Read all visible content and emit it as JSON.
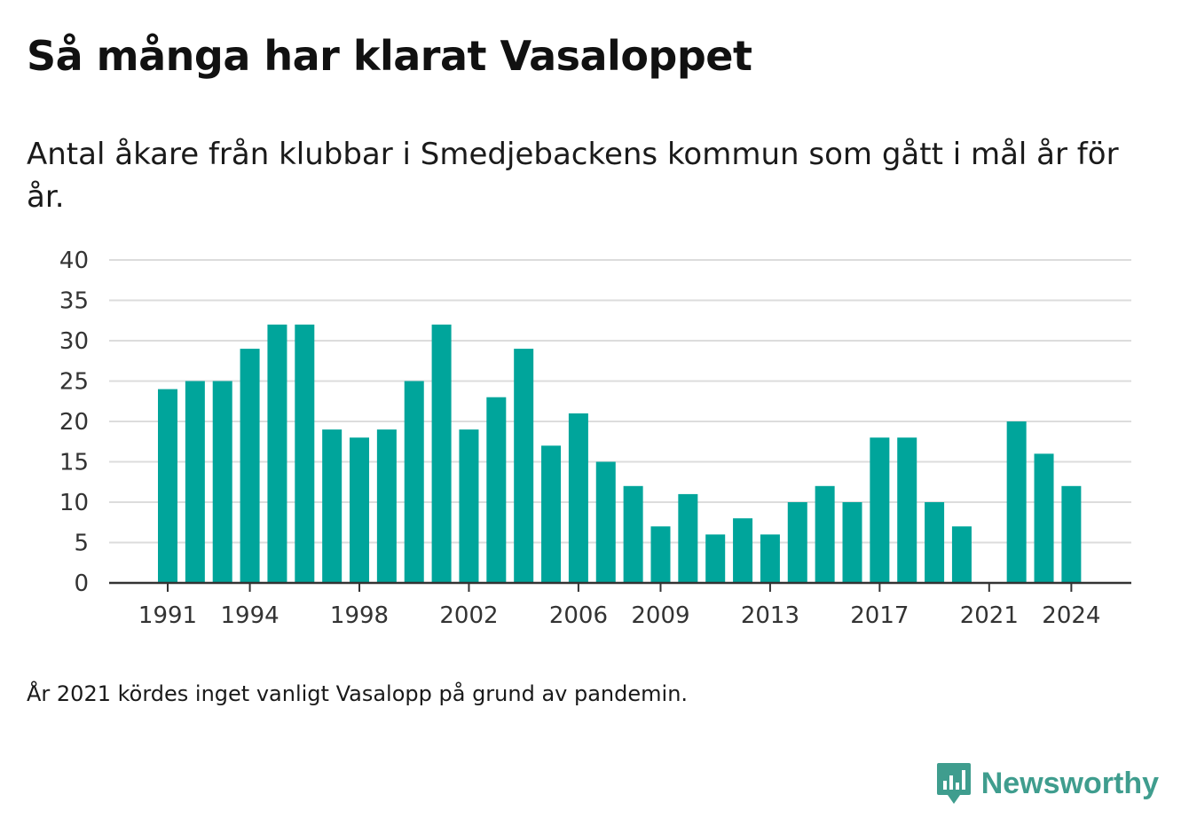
{
  "header": {
    "title": "Så många har klarat Vasaloppet",
    "subtitle": "Antal åkare från klubbar i Smedjebackens kommun som gått i mål år för år."
  },
  "footnote": "År 2021 kördes inget vanligt Vasalopp på grund av pandemin.",
  "brand": {
    "name": "Newsworthy",
    "icon": "newsworthy-logo-icon",
    "color": "#3f9d8e"
  },
  "chart_data": {
    "type": "bar",
    "categories": [
      1991,
      1992,
      1993,
      1994,
      1995,
      1996,
      1997,
      1998,
      1999,
      2000,
      2001,
      2002,
      2003,
      2004,
      2005,
      2006,
      2007,
      2008,
      2009,
      2010,
      2011,
      2012,
      2013,
      2014,
      2015,
      2016,
      2017,
      2018,
      2019,
      2020,
      2021,
      2022,
      2023,
      2024
    ],
    "values": [
      24,
      25,
      25,
      29,
      32,
      32,
      19,
      18,
      19,
      25,
      32,
      19,
      23,
      29,
      17,
      21,
      15,
      12,
      7,
      11,
      6,
      8,
      6,
      10,
      12,
      10,
      18,
      18,
      10,
      7,
      null,
      20,
      16,
      12
    ],
    "x_tick_labels": [
      1991,
      1994,
      1998,
      2002,
      2006,
      2009,
      2013,
      2017,
      2021,
      2024
    ],
    "y_ticks": [
      0,
      5,
      10,
      15,
      20,
      25,
      30,
      35,
      40
    ],
    "ylim": [
      0,
      40
    ],
    "bar_color": "#00a59b",
    "grid": true,
    "title": "Så många har klarat Vasaloppet",
    "xlabel": "",
    "ylabel": ""
  }
}
